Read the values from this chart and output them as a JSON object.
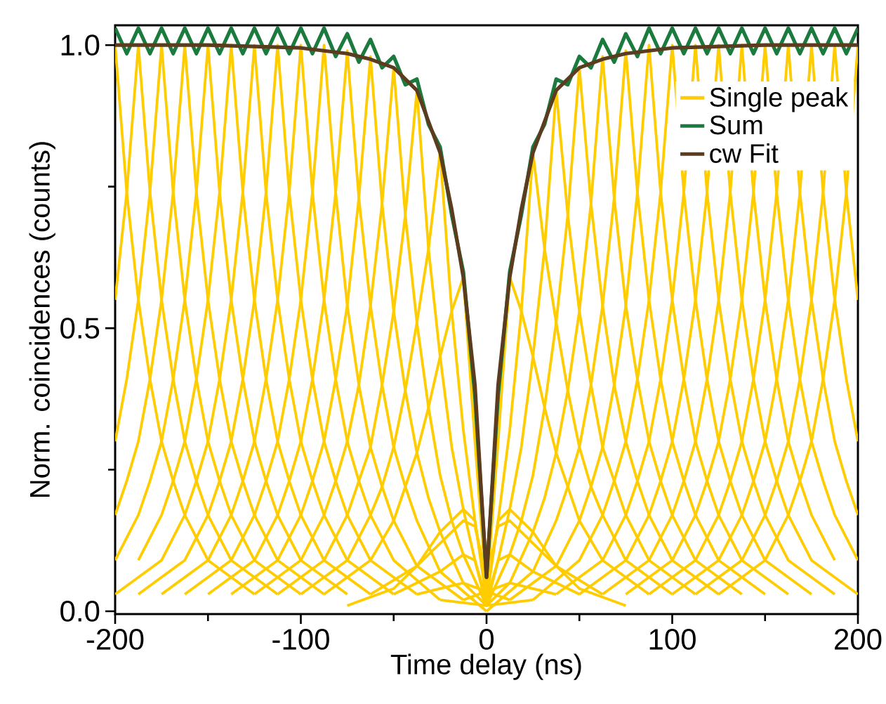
{
  "chart_data": {
    "type": "line",
    "xlabel": "Time delay (ns)",
    "ylabel": "Norm. coincidences (counts)",
    "xlim": [
      -200,
      200
    ],
    "ylim": [
      -0.005,
      1.035
    ],
    "xticks": [
      -200,
      {
        "value": -150,
        "label": null
      },
      -100,
      {
        "value": -50,
        "label": null
      },
      0,
      {
        "value": 50,
        "label": null
      },
      100,
      {
        "value": 150,
        "label": null
      },
      200
    ],
    "yticks": [
      {
        "value": 0,
        "label": "0.0"
      },
      {
        "value": 0.25,
        "label": null
      },
      {
        "value": 0.5,
        "label": "0.5"
      },
      {
        "value": 0.75,
        "label": null
      },
      {
        "value": 1,
        "label": "1.0"
      }
    ],
    "legend": "top right",
    "series": [
      {
        "name": "Single peak",
        "color": "#ffcc00",
        "x": [
          -200,
          -193.75,
          -187.5,
          -181.25,
          -175,
          -168.75,
          -162.5,
          -150,
          -125
        ],
        "values": [
          1,
          0.74,
          0.55,
          0.41,
          0.3,
          0.23,
          0.17,
          0.09,
          0.03
        ]
      },
      {
        "color": "#ffcc00",
        "x": [
          -200,
          -193.75,
          -187.5,
          -181.25,
          -175,
          -168.75,
          -162.5,
          -156.25,
          -150,
          -137.5,
          -112.5
        ],
        "values": [
          0.55,
          0.74,
          1,
          0.74,
          0.55,
          0.41,
          0.3,
          0.23,
          0.17,
          0.09,
          0.03
        ]
      },
      {
        "color": "#ffcc00",
        "x": [
          -200,
          -193.75,
          -187.5,
          -181.25,
          -175,
          -168.75,
          -162.5,
          -156.25,
          -150,
          -143.75,
          -137.5,
          -125,
          -100
        ],
        "values": [
          0.3,
          0.41,
          0.55,
          0.74,
          1,
          0.74,
          0.55,
          0.41,
          0.3,
          0.23,
          0.17,
          0.09,
          0.03
        ]
      },
      {
        "color": "#ffcc00",
        "x": [
          -200,
          -193.75,
          -187.5,
          -181.25,
          -175,
          -168.75,
          -162.5,
          -156.25,
          -150,
          -143.75,
          -137.5,
          -131.25,
          -125,
          -112.5,
          -87.5
        ],
        "values": [
          0.17,
          0.23,
          0.3,
          0.41,
          0.55,
          0.74,
          1,
          0.74,
          0.55,
          0.41,
          0.3,
          0.23,
          0.17,
          0.09,
          0.03
        ]
      },
      {
        "color": "#ffcc00",
        "x": [
          -200,
          -187.5,
          -181.25,
          -175,
          -168.75,
          -162.5,
          -156.25,
          -150,
          -143.75,
          -137.5,
          -131.25,
          -125,
          -118.75,
          -112.5,
          -100,
          -75
        ],
        "values": [
          0.09,
          0.17,
          0.23,
          0.3,
          0.41,
          0.55,
          0.74,
          1,
          0.74,
          0.55,
          0.41,
          0.3,
          0.23,
          0.17,
          0.09,
          0.03
        ]
      },
      {
        "color": "#ffcc00",
        "x": [
          -187.5,
          -175,
          -168.75,
          -162.5,
          -156.25,
          -150,
          -143.75,
          -137.5,
          -131.25,
          -125,
          -118.75,
          -112.5,
          -106.25,
          -100,
          -87.5,
          -62.5
        ],
        "values": [
          0.09,
          0.17,
          0.23,
          0.3,
          0.41,
          0.55,
          0.74,
          1,
          0.74,
          0.55,
          0.41,
          0.3,
          0.23,
          0.17,
          0.09,
          0.03
        ]
      },
      {
        "color": "#ffcc00",
        "x": [
          -200,
          -175,
          -162.5,
          -156.25,
          -150,
          -143.75,
          -137.5,
          -131.25,
          -125,
          -118.75,
          -112.5,
          -106.25,
          -100,
          -93.75,
          -87.5,
          -75,
          -50
        ],
        "values": [
          0.03,
          0.09,
          0.17,
          0.23,
          0.3,
          0.41,
          0.55,
          0.74,
          1,
          0.74,
          0.55,
          0.41,
          0.3,
          0.23,
          0.17,
          0.09,
          0.03
        ]
      },
      {
        "color": "#ffcc00",
        "x": [
          -187.5,
          -162.5,
          -150,
          -143.75,
          -137.5,
          -131.25,
          -125,
          -118.75,
          -112.5,
          -106.25,
          -100,
          -93.75,
          -87.5,
          -81.25,
          -75,
          -62.5,
          -37.5
        ],
        "values": [
          0.03,
          0.09,
          0.17,
          0.23,
          0.3,
          0.41,
          0.55,
          0.74,
          1,
          0.74,
          0.55,
          0.41,
          0.3,
          0.23,
          0.17,
          0.09,
          0.03
        ]
      },
      {
        "color": "#ffcc00",
        "x": [
          -175,
          -150,
          -137.5,
          -131.25,
          -125,
          -118.75,
          -112.5,
          -106.25,
          -100,
          -93.75,
          -87.5,
          -81.25,
          -75,
          -68.75,
          -62.5,
          -50,
          -25
        ],
        "values": [
          0.03,
          0.09,
          0.17,
          0.23,
          0.3,
          0.41,
          0.55,
          0.74,
          1,
          0.74,
          0.55,
          0.41,
          0.3,
          0.23,
          0.17,
          0.09,
          0.02
        ]
      },
      {
        "color": "#ffcc00",
        "x": [
          -162.5,
          -137.5,
          -125,
          -118.75,
          -112.5,
          -106.25,
          -100,
          -93.75,
          -87.5,
          -81.25,
          -75,
          -68.75,
          -62.5,
          -56.25,
          -50,
          -37.5,
          -12.5
        ],
        "values": [
          0.03,
          0.09,
          0.17,
          0.23,
          0.3,
          0.41,
          0.55,
          0.74,
          1,
          0.74,
          0.54,
          0.4,
          0.29,
          0.22,
          0.16,
          0.08,
          0.02
        ]
      },
      {
        "color": "#ffcc00",
        "x": [
          -150,
          -125,
          -112.5,
          -106.25,
          -100,
          -93.75,
          -87.5,
          -81.25,
          -75,
          -68.75,
          -62.5,
          -56.25,
          -50,
          -43.75,
          -37.5,
          -25,
          0
        ],
        "values": [
          0.03,
          0.09,
          0.17,
          0.23,
          0.3,
          0.41,
          0.55,
          0.74,
          0.99,
          0.73,
          0.54,
          0.4,
          0.29,
          0.22,
          0.16,
          0.07,
          0
        ]
      },
      {
        "color": "#ffcc00",
        "x": [
          -137.5,
          -112.5,
          -100,
          -93.75,
          -87.5,
          -81.25,
          -75,
          -68.75,
          -62.5,
          -56.25,
          -50,
          -43.75,
          -37.5,
          -31.25,
          -25,
          -12.5,
          12.5
        ],
        "values": [
          0.03,
          0.09,
          0.17,
          0.23,
          0.3,
          0.41,
          0.54,
          0.73,
          0.98,
          0.72,
          0.53,
          0.39,
          0.28,
          0.2,
          0.14,
          0.05,
          0.02
        ]
      },
      {
        "color": "#ffcc00",
        "x": [
          -125,
          -100,
          -87.5,
          -81.25,
          -75,
          -68.75,
          -62.5,
          -56.25,
          -50,
          -43.75,
          -37.5,
          -31.25,
          -25,
          -18.75,
          -12.5,
          0,
          25
        ],
        "values": [
          0.03,
          0.09,
          0.17,
          0.23,
          0.3,
          0.4,
          0.54,
          0.72,
          0.96,
          0.7,
          0.51,
          0.36,
          0.24,
          0.16,
          0.1,
          0.01,
          0.02
        ]
      },
      {
        "color": "#ffcc00",
        "x": [
          -112.5,
          -87.5,
          -75,
          -68.75,
          -62.5,
          -56.25,
          -50,
          -43.75,
          -37.5,
          -31.25,
          -25,
          -18.75,
          -12.5,
          -6.25,
          0,
          12.5,
          37.5
        ],
        "values": [
          0.03,
          0.09,
          0.17,
          0.23,
          0.29,
          0.4,
          0.53,
          0.7,
          0.92,
          0.64,
          0.45,
          0.29,
          0.18,
          0.09,
          0.01,
          0.05,
          0.03
        ]
      },
      {
        "color": "#ffcc00",
        "x": [
          -100,
          -75,
          -62.5,
          -56.25,
          -50,
          -43.75,
          -37.5,
          -31.25,
          -25,
          -18.75,
          -12.5,
          -6.25,
          0,
          6.25,
          12.5,
          25,
          50
        ],
        "values": [
          0.03,
          0.09,
          0.17,
          0.22,
          0.29,
          0.39,
          0.51,
          0.64,
          0.81,
          0.53,
          0.32,
          0.16,
          0.02,
          0.09,
          0.1,
          0.07,
          0.03
        ]
      },
      {
        "color": "#ffcc00",
        "x": [
          -87.5,
          -62.5,
          -50,
          -43.75,
          -37.5,
          -31.25,
          -25,
          -18.75,
          -12.5,
          -6.25,
          0,
          6.25,
          12.5,
          18.75,
          25,
          37.5,
          62.5
        ],
        "values": [
          0.03,
          0.09,
          0.16,
          0.22,
          0.28,
          0.36,
          0.45,
          0.53,
          0.59,
          0.3,
          0.03,
          0.16,
          0.18,
          0.16,
          0.14,
          0.08,
          0.03
        ]
      },
      {
        "color": "#ffcc00",
        "x": [
          -75,
          -50,
          -37.5,
          -31.25,
          -25,
          -18.75,
          -12.5,
          -6.25,
          0,
          6.25,
          12.5,
          18.75,
          25,
          31.25,
          37.5,
          50,
          75
        ],
        "values": [
          0.01,
          0.04,
          0.08,
          0.1,
          0.12,
          0.14,
          0.16,
          0.15,
          0.06,
          0.15,
          0.16,
          0.14,
          0.12,
          0.1,
          0.08,
          0.04,
          0.01
        ]
      },
      {
        "color": "#ffcc00",
        "x": [
          -62.5,
          -37.5,
          -25,
          -18.75,
          -12.5,
          -6.25,
          0,
          6.25,
          12.5,
          18.75,
          25,
          31.25,
          37.5,
          43.75,
          50,
          62.5,
          87.5
        ],
        "values": [
          0.03,
          0.08,
          0.14,
          0.16,
          0.18,
          0.16,
          0.03,
          0.3,
          0.59,
          0.53,
          0.45,
          0.36,
          0.28,
          0.22,
          0.16,
          0.09,
          0.03
        ]
      },
      {
        "color": "#ffcc00",
        "x": [
          -50,
          -25,
          -12.5,
          -6.25,
          0,
          6.25,
          12.5,
          18.75,
          25,
          31.25,
          37.5,
          43.75,
          50,
          56.25,
          62.5,
          75,
          100
        ],
        "values": [
          0.03,
          0.07,
          0.1,
          0.09,
          0.02,
          0.16,
          0.32,
          0.53,
          0.81,
          0.64,
          0.51,
          0.39,
          0.29,
          0.22,
          0.17,
          0.09,
          0.03
        ]
      },
      {
        "color": "#ffcc00",
        "x": [
          -37.5,
          -12.5,
          0,
          6.25,
          12.5,
          18.75,
          25,
          31.25,
          37.5,
          43.75,
          50,
          56.25,
          62.5,
          68.75,
          75,
          87.5,
          112.5
        ],
        "values": [
          0.03,
          0.05,
          0.01,
          0.09,
          0.18,
          0.29,
          0.45,
          0.64,
          0.92,
          0.7,
          0.53,
          0.4,
          0.29,
          0.23,
          0.17,
          0.09,
          0.03
        ]
      },
      {
        "color": "#ffcc00",
        "x": [
          -25,
          0,
          12.5,
          18.75,
          25,
          31.25,
          37.5,
          43.75,
          50,
          56.25,
          62.5,
          68.75,
          75,
          81.25,
          87.5,
          100,
          125
        ],
        "values": [
          0.02,
          0.01,
          0.1,
          0.16,
          0.24,
          0.36,
          0.51,
          0.7,
          0.96,
          0.72,
          0.54,
          0.4,
          0.3,
          0.23,
          0.17,
          0.09,
          0.03
        ]
      },
      {
        "color": "#ffcc00",
        "x": [
          -12.5,
          12.5,
          25,
          31.25,
          37.5,
          43.75,
          50,
          56.25,
          62.5,
          68.75,
          75,
          81.25,
          87.5,
          93.75,
          100,
          112.5,
          137.5
        ],
        "values": [
          0.02,
          0.05,
          0.14,
          0.2,
          0.28,
          0.39,
          0.53,
          0.72,
          0.98,
          0.73,
          0.54,
          0.41,
          0.3,
          0.23,
          0.17,
          0.09,
          0.03
        ]
      },
      {
        "color": "#ffcc00",
        "x": [
          0,
          25,
          37.5,
          43.75,
          50,
          56.25,
          62.5,
          68.75,
          75,
          81.25,
          87.5,
          93.75,
          100,
          106.25,
          112.5,
          125,
          150
        ],
        "values": [
          0,
          0.07,
          0.16,
          0.22,
          0.29,
          0.4,
          0.54,
          0.73,
          0.99,
          0.74,
          0.55,
          0.41,
          0.3,
          0.23,
          0.17,
          0.09,
          0.03
        ]
      },
      {
        "color": "#ffcc00",
        "x": [
          12.5,
          37.5,
          50,
          56.25,
          62.5,
          68.75,
          75,
          81.25,
          87.5,
          93.75,
          100,
          106.25,
          112.5,
          118.75,
          125,
          137.5,
          162.5
        ],
        "values": [
          0.02,
          0.08,
          0.16,
          0.22,
          0.29,
          0.4,
          0.54,
          0.74,
          1,
          0.74,
          0.55,
          0.41,
          0.3,
          0.23,
          0.17,
          0.09,
          0.03
        ]
      },
      {
        "color": "#ffcc00",
        "x": [
          25,
          50,
          62.5,
          68.75,
          75,
          81.25,
          87.5,
          93.75,
          100,
          106.25,
          112.5,
          118.75,
          125,
          131.25,
          137.5,
          150,
          175
        ],
        "values": [
          0.02,
          0.09,
          0.17,
          0.23,
          0.3,
          0.41,
          0.55,
          0.74,
          1,
          0.74,
          0.55,
          0.41,
          0.3,
          0.23,
          0.17,
          0.09,
          0.03
        ]
      },
      {
        "color": "#ffcc00",
        "x": [
          37.5,
          62.5,
          75,
          81.25,
          87.5,
          93.75,
          100,
          106.25,
          112.5,
          118.75,
          125,
          131.25,
          137.5,
          143.75,
          150,
          162.5,
          187.5
        ],
        "values": [
          0.03,
          0.09,
          0.17,
          0.23,
          0.3,
          0.41,
          0.55,
          0.74,
          1,
          0.74,
          0.55,
          0.41,
          0.3,
          0.23,
          0.17,
          0.09,
          0.03
        ]
      },
      {
        "color": "#ffcc00",
        "x": [
          50,
          75,
          87.5,
          93.75,
          100,
          106.25,
          112.5,
          118.75,
          125,
          131.25,
          137.5,
          143.75,
          150,
          156.25,
          162.5,
          175,
          200
        ],
        "values": [
          0.03,
          0.09,
          0.17,
          0.23,
          0.3,
          0.41,
          0.55,
          0.74,
          1,
          0.74,
          0.55,
          0.41,
          0.3,
          0.23,
          0.17,
          0.09,
          0.03
        ]
      },
      {
        "color": "#ffcc00",
        "x": [
          62.5,
          87.5,
          100,
          106.25,
          112.5,
          118.75,
          125,
          131.25,
          137.5,
          143.75,
          150,
          156.25,
          162.5,
          168.75,
          175,
          187.5
        ],
        "values": [
          0.03,
          0.09,
          0.17,
          0.23,
          0.3,
          0.41,
          0.55,
          0.74,
          1,
          0.74,
          0.55,
          0.41,
          0.3,
          0.23,
          0.17,
          0.09
        ]
      },
      {
        "color": "#ffcc00",
        "x": [
          75,
          100,
          112.5,
          118.75,
          125,
          131.25,
          137.5,
          143.75,
          150,
          156.25,
          162.5,
          168.75,
          175,
          181.25,
          187.5,
          200
        ],
        "values": [
          0.03,
          0.09,
          0.17,
          0.23,
          0.3,
          0.41,
          0.55,
          0.74,
          1,
          0.74,
          0.55,
          0.41,
          0.3,
          0.23,
          0.17,
          0.09
        ]
      },
      {
        "color": "#ffcc00",
        "x": [
          87.5,
          112.5,
          125,
          131.25,
          137.5,
          143.75,
          150,
          156.25,
          162.5,
          168.75,
          175,
          181.25,
          187.5,
          193.75,
          200
        ],
        "values": [
          0.03,
          0.09,
          0.17,
          0.23,
          0.3,
          0.41,
          0.55,
          0.74,
          1,
          0.74,
          0.55,
          0.41,
          0.3,
          0.23,
          0.17
        ]
      },
      {
        "color": "#ffcc00",
        "x": [
          100,
          125,
          137.5,
          143.75,
          150,
          156.25,
          162.5,
          168.75,
          175,
          181.25,
          187.5,
          193.75,
          200
        ],
        "values": [
          0.03,
          0.09,
          0.17,
          0.23,
          0.3,
          0.41,
          0.55,
          0.74,
          1,
          0.74,
          0.55,
          0.41,
          0.3
        ]
      },
      {
        "color": "#ffcc00",
        "x": [
          112.5,
          137.5,
          150,
          156.25,
          162.5,
          168.75,
          175,
          181.25,
          187.5,
          193.75,
          200
        ],
        "values": [
          0.03,
          0.09,
          0.17,
          0.23,
          0.3,
          0.41,
          0.55,
          0.74,
          1,
          0.74,
          0.55
        ]
      },
      {
        "color": "#ffcc00",
        "x": [
          125,
          150,
          162.5,
          168.75,
          175,
          181.25,
          187.5,
          193.75,
          200
        ],
        "values": [
          0.03,
          0.09,
          0.17,
          0.23,
          0.3,
          0.41,
          0.55,
          0.74,
          1
        ]
      },
      {
        "name": "Sum",
        "color": "#1b7a3e",
        "x": [
          -200,
          -193.75,
          -187.5,
          -181.25,
          -175,
          -168.75,
          -162.5,
          -156.25,
          -150,
          -143.75,
          -137.5,
          -131.25,
          -125,
          -118.75,
          -112.5,
          -106.25,
          -100,
          -93.75,
          -87.5,
          -81.25,
          -75,
          -68.75,
          -62.5,
          -56.25,
          -50,
          -43.75,
          -37.5,
          -31.25,
          -25,
          -18.75,
          -12.5,
          -6.25,
          0,
          6.25,
          12.5,
          18.75,
          25,
          31.25,
          37.5,
          43.75,
          50,
          56.25,
          62.5,
          68.75,
          75,
          81.25,
          87.5,
          93.75,
          100,
          106.25,
          112.5,
          118.75,
          125,
          131.25,
          137.5,
          143.75,
          150,
          156.25,
          162.5,
          168.75,
          175,
          181.25,
          187.5,
          193.75,
          200
        ],
        "values": [
          1.03,
          0.985,
          1.03,
          0.985,
          1.03,
          0.985,
          1.03,
          0.985,
          1.03,
          0.985,
          1.03,
          0.985,
          1.03,
          0.985,
          1.03,
          0.985,
          1.03,
          0.985,
          1.03,
          0.98,
          1.02,
          0.97,
          1.01,
          0.96,
          0.98,
          0.93,
          0.94,
          0.86,
          0.82,
          0.7,
          0.6,
          0.38,
          0.06,
          0.38,
          0.6,
          0.7,
          0.82,
          0.86,
          0.94,
          0.93,
          0.98,
          0.96,
          1.01,
          0.97,
          1.02,
          0.98,
          1.03,
          0.985,
          1.03,
          0.985,
          1.03,
          0.985,
          1.03,
          0.985,
          1.03,
          0.985,
          1.03,
          0.985,
          1.03,
          0.985,
          1.03,
          0.985,
          1.03,
          0.985,
          1.03
        ]
      },
      {
        "name": "cw Fit",
        "color": "#5b3c1e",
        "x": [
          -200,
          -150,
          -100,
          -87.5,
          -75,
          -62.5,
          -50,
          -37.5,
          -25,
          -18.75,
          -12.5,
          -6.25,
          -3,
          0,
          3,
          6.25,
          12.5,
          18.75,
          25,
          37.5,
          50,
          62.5,
          75,
          87.5,
          100,
          150,
          200
        ],
        "values": [
          1,
          1,
          0.995,
          0.99,
          0.985,
          0.975,
          0.96,
          0.92,
          0.81,
          0.71,
          0.59,
          0.4,
          0.22,
          0.06,
          0.22,
          0.4,
          0.59,
          0.71,
          0.81,
          0.92,
          0.96,
          0.975,
          0.985,
          0.99,
          0.995,
          1,
          1
        ]
      }
    ]
  }
}
